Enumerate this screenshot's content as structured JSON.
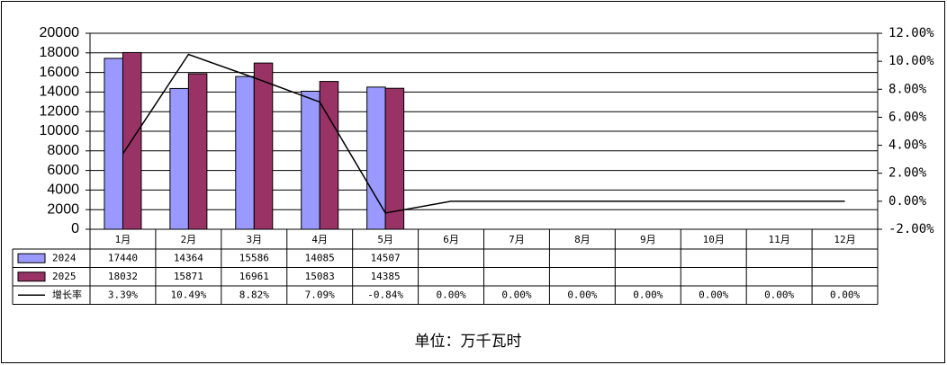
{
  "chart_data": {
    "type": "bar_line_table",
    "categories": [
      "1月",
      "2月",
      "3月",
      "4月",
      "5月",
      "6月",
      "7月",
      "8月",
      "9月",
      "10月",
      "11月",
      "12月"
    ],
    "series": [
      {
        "name": "2024",
        "color": "#9999ff",
        "values": [
          17440,
          14364,
          15586,
          14085,
          14507,
          null,
          null,
          null,
          null,
          null,
          null,
          null
        ]
      },
      {
        "name": "2025",
        "color": "#993366",
        "values": [
          18032,
          15871,
          16961,
          15083,
          14385,
          null,
          null,
          null,
          null,
          null,
          null,
          null
        ]
      },
      {
        "name": "增长率",
        "color": "#000000",
        "axis": "y2",
        "values": [
          3.39,
          10.49,
          8.82,
          7.09,
          -0.84,
          0,
          0,
          0,
          0,
          0,
          0,
          0
        ],
        "value_labels": [
          "3.39%",
          "10.49%",
          "8.82%",
          "7.09%",
          "-0.84%",
          "0.00%",
          "0.00%",
          "0.00%",
          "0.00%",
          "0.00%",
          "0.00%",
          "0.00%"
        ]
      }
    ],
    "ylim": [
      0,
      20000
    ],
    "yticks": [
      0,
      2000,
      4000,
      6000,
      8000,
      10000,
      12000,
      14000,
      16000,
      18000,
      20000
    ],
    "y2lim": [
      -2,
      12
    ],
    "y2ticks": [
      {
        "value": -2,
        "label": "-2.00%"
      },
      {
        "value": 0,
        "label": "0.00%"
      },
      {
        "value": 2,
        "label": "2.00%"
      },
      {
        "value": 4,
        "label": "4.00%"
      },
      {
        "value": 6,
        "label": "6.00%"
      },
      {
        "value": 8,
        "label": "8.00%"
      },
      {
        "value": 10,
        "label": "10.00%"
      },
      {
        "value": 12,
        "label": "12.00%"
      }
    ],
    "grid": true,
    "unit_label": "单位：万千瓦时"
  }
}
